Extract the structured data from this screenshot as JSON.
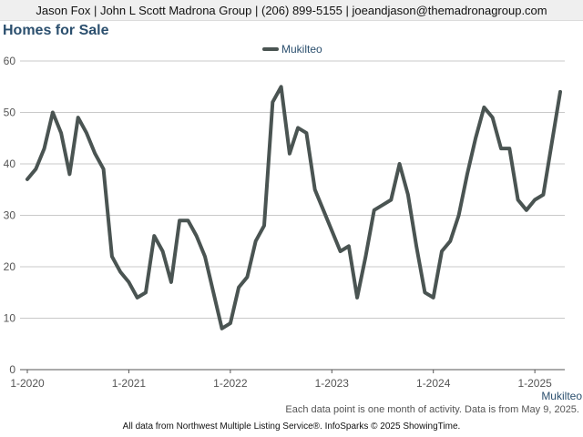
{
  "header": {
    "contact": "Jason Fox | John L Scott Madrona Group | (206) 899-5155 | joeandjason@themadronagroup.com"
  },
  "page_title": "Homes for Sale",
  "footnote": "Each data point is one month of activity. Data is from May 9, 2025.",
  "source": "All data from Northwest Multiple Listing Service®. InfoSparks © 2025 ShowingTime.",
  "colors": {
    "series": "#4a5452",
    "title": "#2b4f6e",
    "legend_text": "#2b4f6e",
    "grid": "#c9c9c9"
  },
  "chart_data": {
    "type": "line",
    "title": "Homes for Sale",
    "xlabel": "",
    "ylabel": "",
    "ylim": [
      0,
      60
    ],
    "yticks": [
      0,
      10,
      20,
      30,
      40,
      50,
      60
    ],
    "xtick_labels": [
      "1-2020",
      "1-2021",
      "1-2022",
      "1-2023",
      "1-2024",
      "1-2025"
    ],
    "x_start": "2020-01",
    "x_end": "2025-04",
    "legend": "top-center",
    "end_label": "Mukilteo",
    "grid": true,
    "series": [
      {
        "name": "Mukilteo",
        "color": "#4a5452",
        "values": [
          37,
          39,
          43,
          50,
          46,
          38,
          49,
          46,
          42,
          39,
          22,
          19,
          17,
          14,
          15,
          26,
          23,
          17,
          29,
          29,
          26,
          22,
          15,
          8,
          9,
          16,
          18,
          25,
          28,
          52,
          55,
          42,
          47,
          46,
          35,
          31,
          27,
          23,
          24,
          14,
          22,
          31,
          32,
          33,
          40,
          34,
          24,
          15,
          14,
          23,
          25,
          30,
          38,
          45,
          51,
          49,
          43,
          43,
          33,
          31,
          33,
          34,
          44,
          54
        ]
      }
    ]
  }
}
